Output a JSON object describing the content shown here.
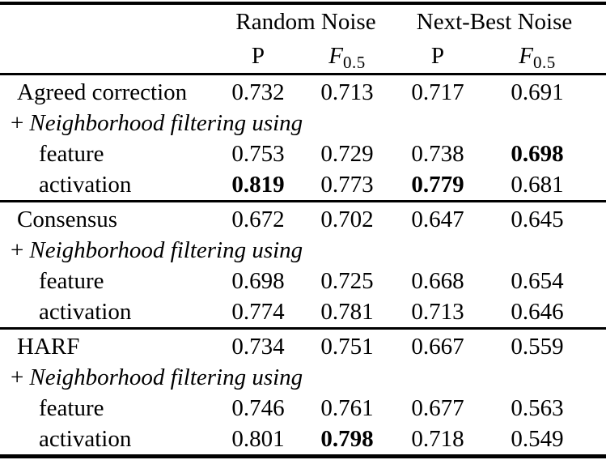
{
  "table": {
    "header": {
      "groups": [
        {
          "label": "Random Noise"
        },
        {
          "label": "Next-Best Noise"
        }
      ],
      "metric_p": "P",
      "metric_f": {
        "base": "F",
        "sub": "0.5"
      }
    },
    "sections": [
      {
        "method": "Agreed correction",
        "method_cells": [
          {
            "v": "0.732",
            "bold": false
          },
          {
            "v": "0.713",
            "bold": false
          },
          {
            "v": "0.717",
            "bold": false
          },
          {
            "v": "0.691",
            "bold": false
          }
        ],
        "filter": {
          "plus": "+",
          "text": "Neighborhood filtering using"
        },
        "rows": [
          {
            "label": "feature",
            "cells": [
              {
                "v": "0.753",
                "bold": false
              },
              {
                "v": "0.729",
                "bold": false
              },
              {
                "v": "0.738",
                "bold": false
              },
              {
                "v": "0.698",
                "bold": true
              }
            ]
          },
          {
            "label": "activation",
            "cells": [
              {
                "v": "0.819",
                "bold": true
              },
              {
                "v": "0.773",
                "bold": false
              },
              {
                "v": "0.779",
                "bold": true
              },
              {
                "v": "0.681",
                "bold": false
              }
            ]
          }
        ]
      },
      {
        "method": "Consensus",
        "method_cells": [
          {
            "v": "0.672",
            "bold": false
          },
          {
            "v": "0.702",
            "bold": false
          },
          {
            "v": "0.647",
            "bold": false
          },
          {
            "v": "0.645",
            "bold": false
          }
        ],
        "filter": {
          "plus": "+",
          "text": "Neighborhood filtering using"
        },
        "rows": [
          {
            "label": "feature",
            "cells": [
              {
                "v": "0.698",
                "bold": false
              },
              {
                "v": "0.725",
                "bold": false
              },
              {
                "v": "0.668",
                "bold": false
              },
              {
                "v": "0.654",
                "bold": false
              }
            ]
          },
          {
            "label": "activation",
            "cells": [
              {
                "v": "0.774",
                "bold": false
              },
              {
                "v": "0.781",
                "bold": false
              },
              {
                "v": "0.713",
                "bold": false
              },
              {
                "v": "0.646",
                "bold": false
              }
            ]
          }
        ]
      },
      {
        "method": "HARF",
        "method_cells": [
          {
            "v": "0.734",
            "bold": false
          },
          {
            "v": "0.751",
            "bold": false
          },
          {
            "v": "0.667",
            "bold": false
          },
          {
            "v": "0.559",
            "bold": false
          }
        ],
        "filter": {
          "plus": "+",
          "text": "Neighborhood filtering using"
        },
        "rows": [
          {
            "label": "feature",
            "cells": [
              {
                "v": "0.746",
                "bold": false
              },
              {
                "v": "0.761",
                "bold": false
              },
              {
                "v": "0.677",
                "bold": false
              },
              {
                "v": "0.563",
                "bold": false
              }
            ]
          },
          {
            "label": "activation",
            "cells": [
              {
                "v": "0.801",
                "bold": false
              },
              {
                "v": "0.798",
                "bold": true
              },
              {
                "v": "0.718",
                "bold": false
              },
              {
                "v": "0.549",
                "bold": false
              }
            ]
          }
        ]
      }
    ],
    "colors": {
      "text": "#000000",
      "background": "#ffffff",
      "rule": "#000000"
    }
  }
}
